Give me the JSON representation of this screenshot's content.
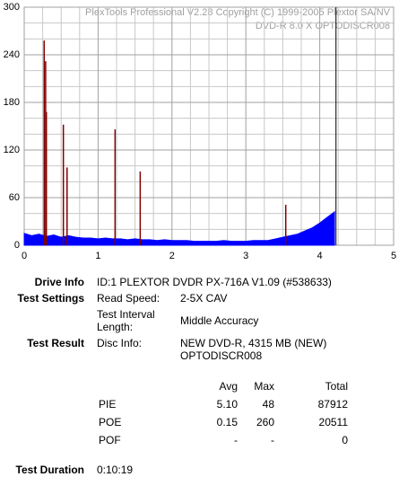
{
  "chart_data": {
    "type": "area",
    "annotations": [
      "PlexTools Professional V2.28 Copyright (C) 1999-2005 Plextor SA/NV",
      "DVD-R   8.0 X   OPTODISCR008"
    ],
    "xlim": [
      0,
      5
    ],
    "ylim": [
      0,
      300
    ],
    "xticks": [
      0,
      1,
      2,
      3,
      4,
      5
    ],
    "yticks": [
      0,
      60,
      120,
      180,
      240,
      300
    ],
    "xgrid": [
      0.25,
      0.5,
      0.75,
      1.25,
      1.5,
      1.75,
      2.25,
      2.5,
      2.75,
      3.25,
      3.5,
      3.75,
      4.25,
      4.5,
      4.75
    ],
    "ygrid": [
      20,
      40,
      80,
      100,
      140,
      160,
      200,
      220,
      260,
      280
    ],
    "grid": true,
    "series": [
      {
        "kind": "area",
        "color": "#0000ff",
        "x": [
          0,
          0.1,
          0.2,
          0.3,
          0.4,
          0.5,
          0.6,
          0.7,
          0.8,
          0.9,
          1,
          1.1,
          1.2,
          1.3,
          1.4,
          1.5,
          1.6,
          1.7,
          1.8,
          1.9,
          2,
          2.1,
          2.2,
          2.3,
          2.4,
          2.5,
          2.6,
          2.7,
          2.8,
          2.9,
          3,
          3.1,
          3.2,
          3.3,
          3.4,
          3.5,
          3.6,
          3.7,
          3.8,
          3.9,
          4,
          4.1,
          4.2
        ],
        "values": [
          15,
          12,
          14,
          11,
          13,
          10,
          12,
          10,
          9,
          9,
          8,
          9,
          8,
          8,
          7,
          8,
          7,
          7,
          6,
          7,
          6,
          6,
          6,
          5,
          5,
          5,
          5,
          6,
          5,
          5,
          5,
          6,
          6,
          6,
          8,
          10,
          12,
          14,
          18,
          22,
          28,
          35,
          42
        ]
      },
      {
        "kind": "spike",
        "color": "#800000",
        "x": [
          0.27,
          0.29,
          0.3,
          0.53,
          0.58,
          1.23,
          1.57,
          3.54
        ],
        "values": [
          258,
          232,
          168,
          152,
          98,
          146,
          93,
          51
        ]
      }
    ],
    "vlines": [
      {
        "value": 4.22,
        "color": "#000000"
      }
    ]
  },
  "report": {
    "drive_info": {
      "label": "Drive Info",
      "value": "ID:1 PLEXTOR DVDR PX-716A V1.09 (#538633)"
    },
    "test_settings": {
      "label": "Test Settings",
      "rows": [
        [
          "Read Speed:",
          "2-5X CAV"
        ],
        [
          "Test Interval",
          "Length:",
          "Middle Accuracy"
        ]
      ]
    },
    "test_result": {
      "label": "Test Result",
      "key": "Disc Info:",
      "lines": [
        "NEW DVD-R, 4315 MB (NEW)",
        "OPTODISCR008"
      ]
    },
    "table": {
      "headers": [
        "Avg",
        "Max",
        "Total"
      ],
      "rows": [
        [
          "PIE",
          "5.10",
          "48",
          "87912"
        ],
        [
          "POE",
          "0.15",
          "260",
          "20511"
        ],
        [
          "POF",
          "-",
          "-",
          "0"
        ]
      ]
    },
    "duration": {
      "label": "Test Duration",
      "value": "0:10:19"
    }
  }
}
